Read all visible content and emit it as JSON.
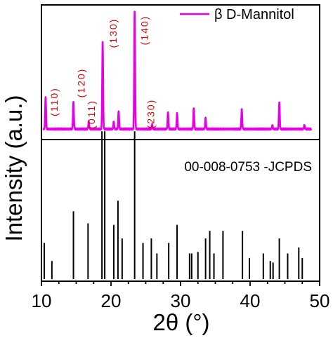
{
  "chart_data": {
    "type": "line",
    "xlabel": "2θ (°)",
    "ylabel": "Intensity (a.u.)",
    "xlim": [
      10,
      50
    ],
    "x_ticks": [
      "10",
      "20",
      "30",
      "40",
      "50"
    ],
    "grid": false,
    "top_panel": {
      "series": [
        {
          "name": "β D-Mannitol",
          "color": "#e600e6",
          "peaks": [
            {
              "x": 10.6,
              "h": 0.27
            },
            {
              "x": 14.6,
              "h": 0.22
            },
            {
              "x": 16.8,
              "h": 0.06
            },
            {
              "x": 18.8,
              "h": 0.72
            },
            {
              "x": 20.4,
              "h": 0.06
            },
            {
              "x": 21.1,
              "h": 0.15
            },
            {
              "x": 23.4,
              "h": 0.97
            },
            {
              "x": 25.9,
              "h": 0.04
            },
            {
              "x": 28.2,
              "h": 0.14
            },
            {
              "x": 29.5,
              "h": 0.13
            },
            {
              "x": 31.9,
              "h": 0.17
            },
            {
              "x": 33.6,
              "h": 0.09
            },
            {
              "x": 38.8,
              "h": 0.16
            },
            {
              "x": 43.2,
              "h": 0.03
            },
            {
              "x": 44.2,
              "h": 0.22
            },
            {
              "x": 47.8,
              "h": 0.03
            }
          ]
        }
      ],
      "annotations": [
        {
          "text": "(110)",
          "x": 12.3
        },
        {
          "text": "(120)",
          "x": 16.2
        },
        {
          "text": "(011)",
          "x": 17.7
        },
        {
          "text": "(130)",
          "x": 20.8
        },
        {
          "text": "(140)",
          "x": 25.3
        },
        {
          "text": "(230)",
          "x": 26.2
        }
      ],
      "legend_position": "top-right"
    },
    "bottom_panel": {
      "label": "00-008-0753 -JCPDS",
      "color": "#000000",
      "lines": [
        {
          "x": 10.4,
          "h": 0.24
        },
        {
          "x": 11.5,
          "h": 0.12
        },
        {
          "x": 14.6,
          "h": 0.45
        },
        {
          "x": 16.7,
          "h": 0.37
        },
        {
          "x": 18.7,
          "h": 0.98
        },
        {
          "x": 19.1,
          "h": 0.98
        },
        {
          "x": 20.4,
          "h": 0.36
        },
        {
          "x": 21.0,
          "h": 0.52
        },
        {
          "x": 21.6,
          "h": 0.27
        },
        {
          "x": 23.4,
          "h": 0.98
        },
        {
          "x": 24.6,
          "h": 0.24
        },
        {
          "x": 25.8,
          "h": 0.27
        },
        {
          "x": 26.6,
          "h": 0.17
        },
        {
          "x": 28.3,
          "h": 0.24
        },
        {
          "x": 29.5,
          "h": 0.36
        },
        {
          "x": 31.3,
          "h": 0.17
        },
        {
          "x": 31.6,
          "h": 0.17
        },
        {
          "x": 32.5,
          "h": 0.18
        },
        {
          "x": 33.6,
          "h": 0.27
        },
        {
          "x": 34.2,
          "h": 0.32
        },
        {
          "x": 34.8,
          "h": 0.17
        },
        {
          "x": 36.1,
          "h": 0.32
        },
        {
          "x": 38.9,
          "h": 0.32
        },
        {
          "x": 39.9,
          "h": 0.14
        },
        {
          "x": 41.9,
          "h": 0.17
        },
        {
          "x": 42.9,
          "h": 0.12
        },
        {
          "x": 43.3,
          "h": 0.11
        },
        {
          "x": 44.2,
          "h": 0.27
        },
        {
          "x": 45.4,
          "h": 0.17
        },
        {
          "x": 47.0,
          "h": 0.21
        },
        {
          "x": 47.5,
          "h": 0.14
        }
      ]
    }
  }
}
